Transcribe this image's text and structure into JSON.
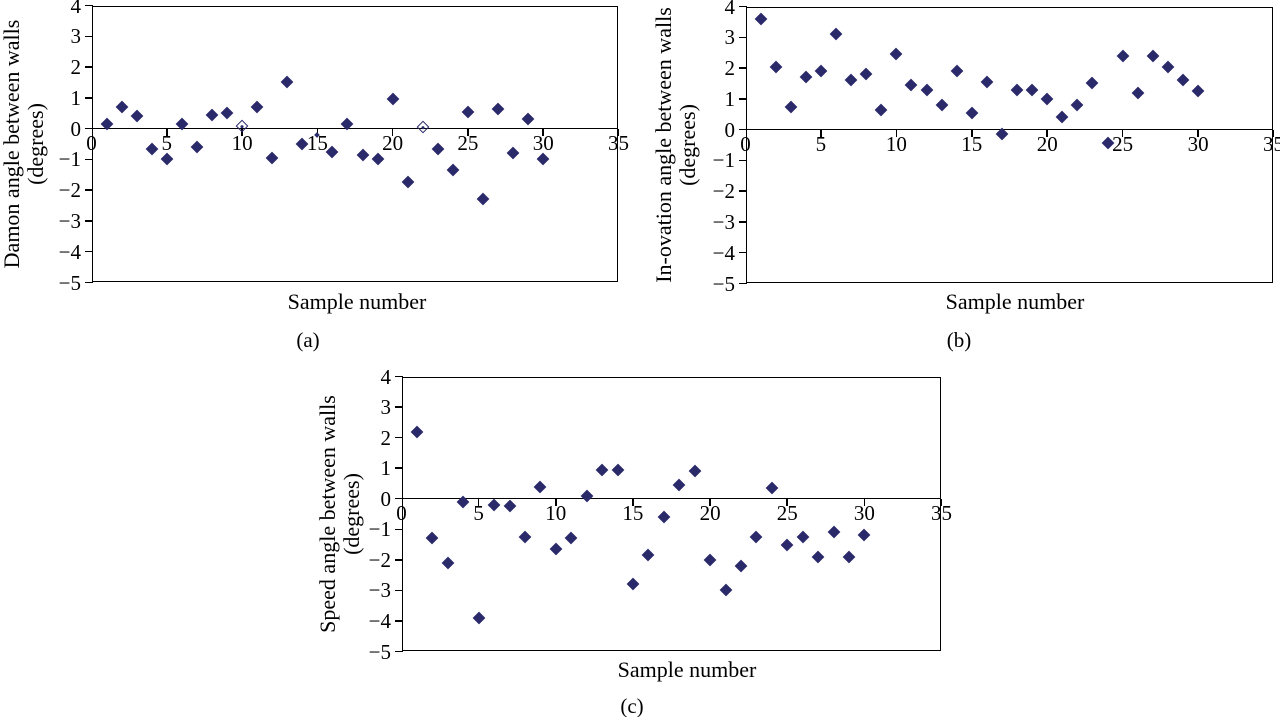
{
  "figure": {
    "background": "#ffffff",
    "marker_color": "#2a2a6b",
    "axis_color": "#000000"
  },
  "chart_data": [
    {
      "id": "a",
      "type": "scatter",
      "caption": "(a)",
      "ylabel_line1": "Damon angle between walls",
      "ylabel_line2": "(degrees)",
      "xlabel": "Sample number",
      "xlim": [
        0,
        35
      ],
      "ylim": [
        -5,
        4
      ],
      "xticks": [
        0,
        5,
        10,
        15,
        20,
        25,
        30,
        35
      ],
      "yticks": [
        4,
        3,
        2,
        1,
        0,
        -1,
        -2,
        -3,
        -4,
        -5
      ],
      "grid": false,
      "legend": "none",
      "x": [
        1,
        2,
        3,
        4,
        5,
        6,
        7,
        8,
        9,
        10,
        11,
        12,
        13,
        14,
        15,
        16,
        17,
        18,
        19,
        20,
        21,
        22,
        23,
        24,
        25,
        26,
        27,
        28,
        29,
        30
      ],
      "y": [
        0.15,
        0.7,
        0.4,
        -0.65,
        -1.0,
        0.15,
        -0.6,
        0.45,
        0.5,
        0.1,
        0.7,
        -0.95,
        1.5,
        -0.5,
        -0.2,
        -0.75,
        0.15,
        -0.85,
        -1.0,
        0.95,
        -1.75,
        0.05,
        -0.65,
        -1.35,
        0.55,
        -2.3,
        0.65,
        -0.8,
        0.3,
        -1.0
      ],
      "marker": "diamond",
      "marker_overrides": {
        "10": "open",
        "15": "small",
        "22": "open"
      }
    },
    {
      "id": "b",
      "type": "scatter",
      "caption": "(b)",
      "ylabel_line1": "In-ovation angle between walls",
      "ylabel_line2": "(degrees)",
      "xlabel": "Sample number",
      "xlim": [
        0,
        35
      ],
      "ylim": [
        -5,
        4
      ],
      "xticks": [
        0,
        5,
        10,
        15,
        20,
        25,
        30,
        35
      ],
      "yticks": [
        4,
        3,
        2,
        1,
        0,
        -1,
        -2,
        -3,
        -4,
        -5
      ],
      "grid": false,
      "legend": "none",
      "x": [
        1,
        2,
        3,
        4,
        5,
        6,
        7,
        8,
        9,
        10,
        11,
        12,
        13,
        14,
        15,
        16,
        17,
        18,
        19,
        20,
        21,
        22,
        23,
        24,
        25,
        26,
        27,
        28,
        29,
        30
      ],
      "y": [
        3.6,
        2.05,
        0.75,
        1.7,
        1.9,
        3.1,
        1.6,
        1.8,
        0.65,
        2.45,
        1.45,
        1.3,
        0.8,
        1.9,
        0.55,
        1.55,
        -0.15,
        1.3,
        1.3,
        1.0,
        0.4,
        0.8,
        1.5,
        -0.45,
        2.4,
        1.2,
        2.4,
        2.05,
        1.6,
        1.25
      ],
      "marker": "diamond",
      "marker_overrides": {}
    },
    {
      "id": "c",
      "type": "scatter",
      "caption": "(c)",
      "ylabel_line1": "Speed angle between walls",
      "ylabel_line2": "(degrees)",
      "xlabel": "Sample number",
      "xlim": [
        0,
        35
      ],
      "ylim": [
        -5,
        4
      ],
      "xticks": [
        0,
        5,
        10,
        15,
        20,
        25,
        30,
        35
      ],
      "yticks": [
        4,
        3,
        2,
        1,
        0,
        -1,
        -2,
        -3,
        -4,
        -5
      ],
      "grid": false,
      "legend": "none",
      "x": [
        1,
        2,
        3,
        4,
        5,
        6,
        7,
        8,
        9,
        10,
        11,
        12,
        13,
        14,
        15,
        16,
        17,
        18,
        19,
        20,
        21,
        22,
        23,
        24,
        25,
        26,
        27,
        28,
        29,
        30
      ],
      "y": [
        2.2,
        -1.3,
        -2.1,
        -0.1,
        -3.9,
        -0.2,
        -0.25,
        -1.25,
        0.4,
        -1.65,
        -1.3,
        0.1,
        0.95,
        0.95,
        -2.8,
        -1.85,
        -0.6,
        0.45,
        0.9,
        -2.0,
        -3.0,
        -2.2,
        -1.25,
        0.35,
        -1.5,
        -1.25,
        -1.9,
        -1.1,
        -1.9,
        -1.2
      ],
      "marker": "diamond",
      "marker_overrides": {
        "4": "normal"
      }
    }
  ]
}
